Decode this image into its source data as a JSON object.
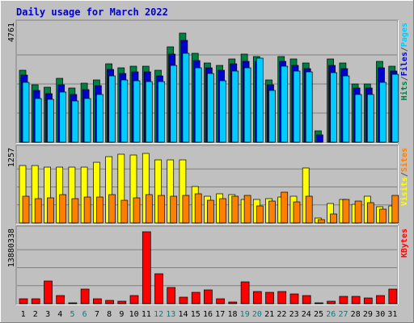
{
  "chart_data": [
    {
      "type": "bar",
      "title": "Daily usage for March 2022",
      "ytick_max": "4761",
      "ylim": [
        0,
        4761
      ],
      "categories": [
        "1",
        "2",
        "3",
        "4",
        "5",
        "6",
        "7",
        "8",
        "9",
        "10",
        "11",
        "12",
        "13",
        "14",
        "15",
        "16",
        "17",
        "18",
        "19",
        "20",
        "21",
        "22",
        "23",
        "24",
        "25",
        "26",
        "27",
        "28",
        "29",
        "30",
        "31"
      ],
      "weekend_days": [
        "5",
        "6",
        "12",
        "13",
        "19",
        "20",
        "26",
        "27"
      ],
      "legend": [
        {
          "label": "Pages",
          "color": "#00ccff"
        },
        {
          "label": "/",
          "color": "#555555"
        },
        {
          "label": "Files",
          "color": "#0000cc"
        },
        {
          "label": "/",
          "color": "#555555"
        },
        {
          "label": "Hits",
          "color": "#008040"
        }
      ],
      "series": [
        {
          "name": "Hits",
          "color": "#008040",
          "values": [
            2950,
            2350,
            2250,
            2600,
            2200,
            2400,
            2550,
            3200,
            3050,
            3100,
            3100,
            2950,
            3900,
            4450,
            3650,
            3250,
            3150,
            3400,
            3600,
            3500,
            2550,
            3520,
            3400,
            3240,
            450,
            3420,
            3240,
            2380,
            2380,
            3300,
            3110
          ]
        },
        {
          "name": "Files",
          "color": "#0000cc",
          "values": [
            2750,
            2100,
            2000,
            2350,
            1950,
            2150,
            2300,
            2980,
            2800,
            2880,
            2880,
            2720,
            3600,
            4150,
            3350,
            3050,
            2950,
            3200,
            3300,
            3300,
            2350,
            3300,
            3150,
            3000,
            300,
            3150,
            3000,
            2200,
            2200,
            3050,
            2920
          ]
        },
        {
          "name": "Pages",
          "color": "#00ccff",
          "values": [
            2450,
            1800,
            1750,
            2050,
            1700,
            1800,
            1950,
            2720,
            2550,
            2500,
            2480,
            2480,
            3150,
            3650,
            3050,
            2800,
            2500,
            2900,
            3050,
            3450,
            2100,
            3100,
            2900,
            2890,
            0,
            2850,
            2700,
            1950,
            1950,
            2450,
            2770
          ]
        }
      ]
    },
    {
      "type": "bar",
      "ytick_max": "1257",
      "ylim": [
        0,
        1257
      ],
      "categories": [
        "1",
        "2",
        "3",
        "4",
        "5",
        "6",
        "7",
        "8",
        "9",
        "10",
        "11",
        "12",
        "13",
        "14",
        "15",
        "16",
        "17",
        "18",
        "19",
        "20",
        "21",
        "22",
        "23",
        "24",
        "25",
        "26",
        "27",
        "28",
        "29",
        "30",
        "31"
      ],
      "legend": [
        {
          "label": "Sites",
          "color": "#ff8000"
        },
        {
          "label": "/",
          "color": "#555555"
        },
        {
          "label": "Visits",
          "color": "#ffff00"
        }
      ],
      "series": [
        {
          "name": "Visits",
          "color": "#ffff00",
          "values": [
            1000,
            1000,
            970,
            970,
            970,
            970,
            1060,
            1160,
            1200,
            1190,
            1220,
            1100,
            1100,
            1100,
            630,
            470,
            510,
            490,
            410,
            410,
            420,
            450,
            470,
            960,
            80,
            340,
            410,
            330,
            460,
            280,
            300
          ]
        },
        {
          "name": "Sites",
          "color": "#ff8000",
          "values": [
            470,
            420,
            440,
            500,
            420,
            450,
            450,
            490,
            400,
            440,
            500,
            480,
            470,
            480,
            510,
            390,
            420,
            470,
            480,
            300,
            380,
            540,
            370,
            460,
            50,
            150,
            410,
            380,
            350,
            240,
            480
          ]
        }
      ]
    },
    {
      "type": "bar",
      "ytick_max": "13880338",
      "ylim": [
        0,
        13880338
      ],
      "categories": [
        "1",
        "2",
        "3",
        "4",
        "5",
        "6",
        "7",
        "8",
        "9",
        "10",
        "11",
        "12",
        "13",
        "14",
        "15",
        "16",
        "17",
        "18",
        "19",
        "20",
        "21",
        "22",
        "23",
        "24",
        "25",
        "26",
        "27",
        "28",
        "29",
        "30",
        "31"
      ],
      "legend": [
        {
          "label": "KBytes",
          "color": "#ff0000"
        }
      ],
      "series": [
        {
          "name": "KBytes",
          "color": "#ff0000",
          "values": [
            900000,
            900000,
            4300000,
            1500000,
            100000,
            2800000,
            900000,
            700000,
            400000,
            1500000,
            13880000,
            5800000,
            3100000,
            1300000,
            2200000,
            2600000,
            1000000,
            300000,
            4200000,
            2300000,
            2200000,
            2300000,
            1800000,
            1500000,
            100000,
            500000,
            1400000,
            1400000,
            1100000,
            1500000,
            2800000
          ]
        }
      ]
    }
  ]
}
